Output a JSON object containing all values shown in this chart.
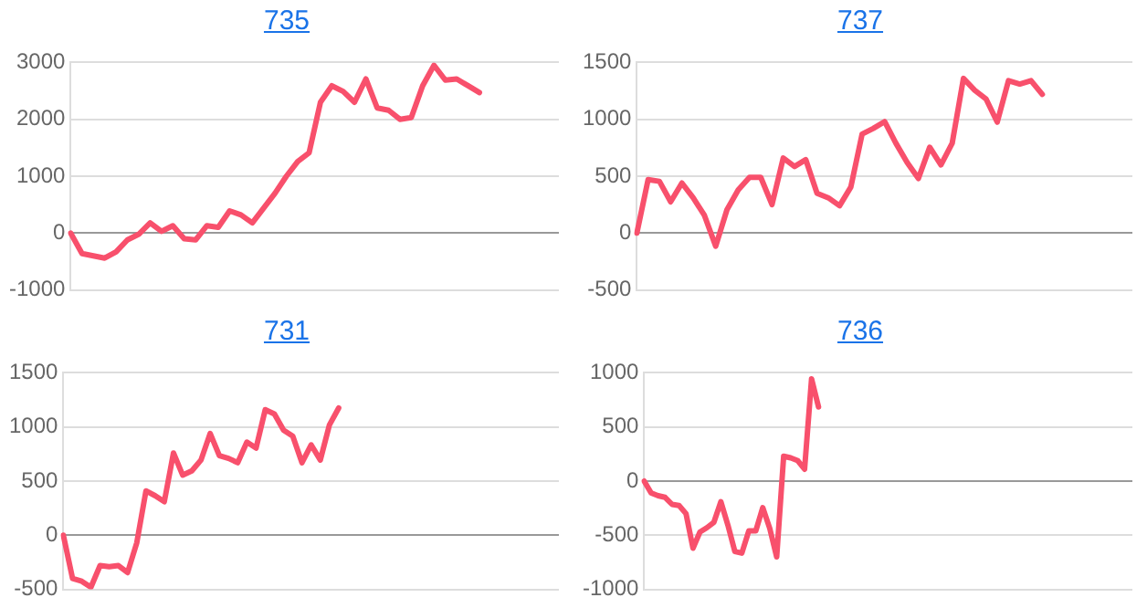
{
  "chart_data": [
    {
      "type": "line",
      "title": "735",
      "color": "#f8506c",
      "grid": "y",
      "tick_labels": "y",
      "marker": "none",
      "line_style": "solid",
      "ylim": [
        -1000,
        3000
      ],
      "yticks": [
        -1000,
        0,
        1000,
        2000,
        3000
      ],
      "categories": [
        null,
        null,
        null,
        null,
        null,
        null,
        null,
        null,
        null,
        null,
        null,
        null,
        null,
        null,
        null,
        null,
        null,
        null,
        null,
        null,
        null,
        null,
        null,
        null,
        null,
        null,
        null,
        null,
        null,
        null,
        null,
        null,
        null,
        null,
        null,
        null,
        null,
        null,
        null,
        null,
        null,
        null,
        null,
        null
      ],
      "values": [
        0,
        -360,
        -400,
        -440,
        -330,
        -120,
        -20,
        180,
        30,
        130,
        -100,
        -120,
        130,
        100,
        390,
        320,
        180,
        440,
        700,
        1000,
        1260,
        1410,
        2300,
        2590,
        2490,
        2300,
        2710,
        2200,
        2160,
        2000,
        2030,
        2590,
        2950,
        2690,
        2710,
        2590,
        2470,
        null,
        null,
        null,
        null,
        null,
        null,
        null
      ]
    },
    {
      "type": "line",
      "title": "737",
      "color": "#f8506c",
      "grid": "y",
      "tick_labels": "y",
      "marker": "none",
      "line_style": "solid",
      "ylim": [
        -500,
        1500
      ],
      "yticks": [
        -500,
        0,
        500,
        1000,
        1500
      ],
      "categories": [
        null,
        null,
        null,
        null,
        null,
        null,
        null,
        null,
        null,
        null,
        null,
        null,
        null,
        null,
        null,
        null,
        null,
        null,
        null,
        null,
        null,
        null,
        null,
        null,
        null,
        null,
        null,
        null,
        null,
        null,
        null,
        null,
        null,
        null,
        null,
        null,
        null,
        null,
        null,
        null,
        null,
        null,
        null,
        null,
        null
      ],
      "values": [
        0,
        470,
        455,
        275,
        440,
        310,
        155,
        -115,
        205,
        380,
        490,
        490,
        250,
        660,
        585,
        645,
        350,
        310,
        240,
        405,
        870,
        920,
        980,
        790,
        620,
        480,
        755,
        600,
        790,
        1360,
        1255,
        1180,
        975,
        1340,
        1310,
        1340,
        1220,
        null,
        null,
        null,
        null,
        null,
        null,
        null,
        null
      ]
    },
    {
      "type": "line",
      "title": "731",
      "color": "#f8506c",
      "grid": "y",
      "tick_labels": "y",
      "marker": "none",
      "line_style": "solid",
      "ylim": [
        -500,
        1500
      ],
      "yticks": [
        -500,
        0,
        500,
        1000,
        1500
      ],
      "categories": [
        null,
        null,
        null,
        null,
        null,
        null,
        null,
        null,
        null,
        null,
        null,
        null,
        null,
        null,
        null,
        null,
        null,
        null,
        null,
        null,
        null,
        null,
        null,
        null,
        null,
        null,
        null,
        null,
        null,
        null,
        null,
        null,
        null,
        null,
        null,
        null,
        null,
        null,
        null,
        null,
        null,
        null,
        null,
        null,
        null,
        null,
        null,
        null,
        null,
        null,
        null,
        null,
        null,
        null,
        null
      ],
      "values": [
        0,
        -400,
        -425,
        -480,
        -280,
        -290,
        -280,
        -345,
        -70,
        410,
        365,
        310,
        760,
        555,
        595,
        695,
        940,
        735,
        710,
        670,
        860,
        805,
        1160,
        1120,
        970,
        915,
        670,
        835,
        695,
        1020,
        1175,
        null,
        null,
        null,
        null,
        null,
        null,
        null,
        null,
        null,
        null,
        null,
        null,
        null,
        null,
        null,
        null,
        null,
        null,
        null,
        null,
        null,
        null,
        null,
        null
      ]
    },
    {
      "type": "line",
      "title": "736",
      "color": "#f8506c",
      "grid": "y",
      "tick_labels": "y",
      "marker": "none",
      "line_style": "solid",
      "ylim": [
        -1000,
        1000
      ],
      "yticks": [
        -1000,
        -500,
        0,
        500,
        1000
      ],
      "categories": [
        null,
        null,
        null,
        null,
        null,
        null,
        null,
        null,
        null,
        null,
        null,
        null,
        null,
        null,
        null,
        null,
        null,
        null,
        null,
        null,
        null,
        null,
        null,
        null,
        null,
        null,
        null,
        null,
        null,
        null,
        null,
        null,
        null,
        null,
        null,
        null,
        null,
        null,
        null,
        null,
        null,
        null,
        null,
        null,
        null,
        null,
        null,
        null,
        null,
        null,
        null,
        null,
        null,
        null,
        null,
        null,
        null,
        null,
        null,
        null,
        null,
        null,
        null,
        null,
        null,
        null,
        null,
        null,
        null,
        null,
        null
      ],
      "values": [
        0,
        -110,
        -135,
        -150,
        -215,
        -225,
        -300,
        -620,
        -470,
        -430,
        -380,
        -190,
        -405,
        -650,
        -665,
        -460,
        -460,
        -245,
        -435,
        -700,
        230,
        215,
        190,
        110,
        945,
        685,
        null,
        null,
        null,
        null,
        null,
        null,
        null,
        null,
        null,
        null,
        null,
        null,
        null,
        null,
        null,
        null,
        null,
        null,
        null,
        null,
        null,
        null,
        null,
        null,
        null,
        null,
        null,
        null,
        null,
        null,
        null,
        null,
        null,
        null,
        null,
        null,
        null,
        null,
        null,
        null,
        null,
        null,
        null,
        null,
        null
      ]
    }
  ]
}
